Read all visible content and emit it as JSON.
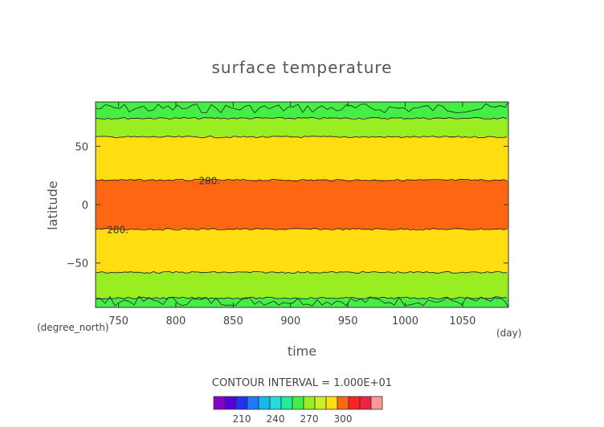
{
  "chart_data": {
    "type": "heatmap",
    "title": "surface temperature",
    "xlabel": "time",
    "ylabel": "latitude",
    "x_unit": "(day)",
    "y_unit": "(degree_north)",
    "xlim": [
      730,
      1090
    ],
    "ylim": [
      -88,
      88
    ],
    "x_ticks": [
      750,
      800,
      850,
      900,
      950,
      1000,
      1050
    ],
    "y_ticks": [
      50,
      0,
      -50
    ],
    "bands": [
      {
        "y0": 74,
        "y1": 88,
        "level": "250-260",
        "color": "#44ee44",
        "edge": "wavy"
      },
      {
        "y0": 58,
        "y1": 74,
        "level": "260-270",
        "color": "#99ee22"
      },
      {
        "y0": 21,
        "y1": 58,
        "level": "270-280",
        "color": "#ffdd11"
      },
      {
        "y0": -21,
        "y1": 21,
        "level": "280-290",
        "color": "#ff6611"
      },
      {
        "y0": -58,
        "y1": -21,
        "level": "270-280",
        "color": "#ffdd11"
      },
      {
        "y0": -80,
        "y1": -58,
        "level": "260-270",
        "color": "#99ee22"
      },
      {
        "y0": -88,
        "y1": -80,
        "level": "250-260",
        "color": "#44ee44",
        "edge": "wavy"
      }
    ],
    "contour_lines": [
      74,
      58,
      21,
      -21,
      -58,
      -80
    ],
    "contour_labels": [
      {
        "text": "280.",
        "x": 820,
        "y": 21
      },
      {
        "text": "280.",
        "x": 740,
        "y": -21
      }
    ],
    "contour_interval_text": "CONTOUR INTERVAL = 1.000E+01",
    "colorbar": {
      "colors": [
        "#8800cc",
        "#5500dd",
        "#2233ee",
        "#2277ff",
        "#11bbee",
        "#22dddd",
        "#22ee99",
        "#44ee44",
        "#99ee22",
        "#ccee22",
        "#ffdd11",
        "#ff6611",
        "#ff2222",
        "#ee2244",
        "#ff9999"
      ],
      "tick_labels": [
        "210",
        "240",
        "270",
        "300"
      ]
    }
  }
}
